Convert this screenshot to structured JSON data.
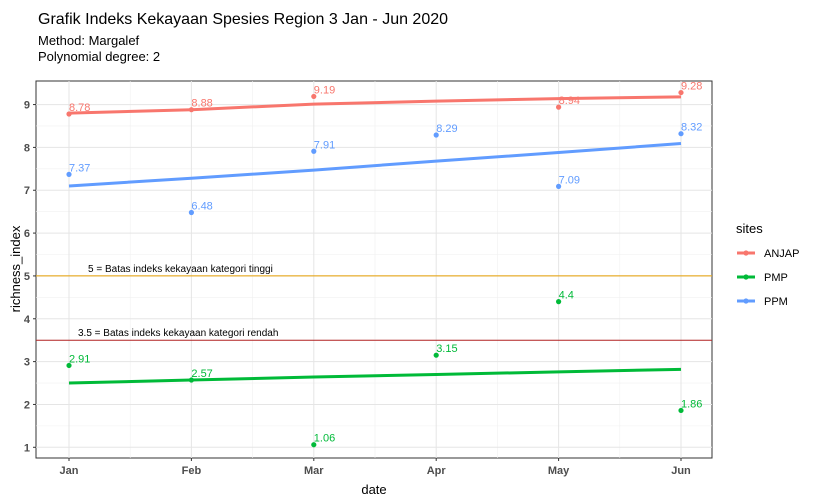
{
  "chart_data": {
    "type": "line",
    "title": "Grafik Indeks Kekayaan Spesies Region 3 Jan - Jun 2020",
    "subtitle_lines": [
      "Method: Margalef",
      "Polynomial degree: 2"
    ],
    "xlabel": "date",
    "ylabel": "richness_index",
    "x": [
      "Jan",
      "Feb",
      "Mar",
      "Apr",
      "May",
      "Jun"
    ],
    "yticks": [
      1,
      2,
      3,
      4,
      5,
      6,
      7,
      8,
      9
    ],
    "ylim": [
      0.75,
      9.55
    ],
    "grid": true,
    "legend": {
      "title": "sites",
      "placement": "right"
    },
    "series": [
      {
        "name": "ANJAP",
        "color": "#F8766D",
        "values": [
          8.78,
          8.88,
          9.19,
          null,
          8.94,
          9.28
        ],
        "labels": [
          "8.78",
          "8.88",
          "9.19",
          "",
          "8.94",
          "9.28"
        ],
        "fit": [
          8.8,
          8.88,
          9.01,
          9.08,
          9.14,
          9.18
        ]
      },
      {
        "name": "PMP",
        "color": "#00BA38",
        "values": [
          2.91,
          2.57,
          1.06,
          3.15,
          4.4,
          1.86
        ],
        "labels": [
          "2.91",
          "2.57",
          "1.06",
          "3.15",
          "4.4",
          "1.86"
        ],
        "fit": [
          2.5,
          2.57,
          2.64,
          2.7,
          2.76,
          2.82
        ]
      },
      {
        "name": "PPM",
        "color": "#619CFF",
        "values": [
          7.37,
          6.48,
          7.91,
          8.29,
          7.09,
          8.32
        ],
        "labels": [
          "7.37",
          "6.48",
          "7.91",
          "8.29",
          "7.09",
          "8.32"
        ],
        "fit": [
          7.1,
          7.28,
          7.47,
          7.68,
          7.88,
          8.09
        ]
      }
    ],
    "annotations": [
      {
        "y": 5,
        "color": "#E69F00",
        "text": "5 = Batas indeks kekayaan kategori tinggi"
      },
      {
        "y": 3.5,
        "color": "#B22222",
        "text": "3.5 = Batas indeks kekayaan kategori rendah"
      }
    ]
  }
}
